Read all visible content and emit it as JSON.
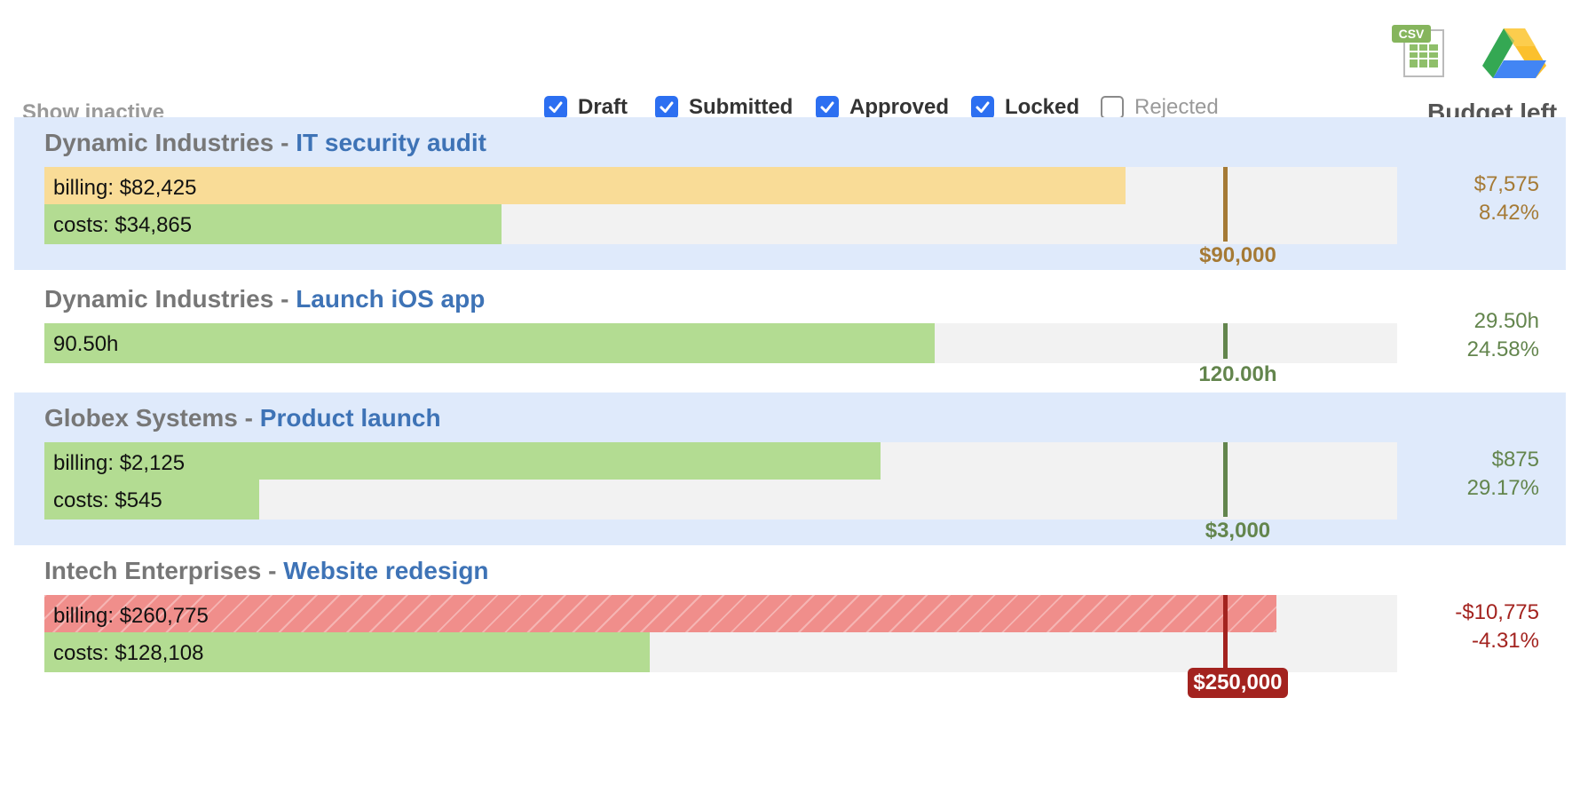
{
  "export": {
    "csv_badge": "CSV"
  },
  "filters": {
    "show_inactive": "Show inactive",
    "statuses": [
      {
        "label": "Draft",
        "checked": true
      },
      {
        "label": "Submitted",
        "checked": true
      },
      {
        "label": "Approved",
        "checked": true
      },
      {
        "label": "Locked",
        "checked": true
      },
      {
        "label": "Rejected",
        "checked": false
      }
    ],
    "budget_left_header": "Budget left"
  },
  "colors": {
    "accent_blue": "#2c6ff1",
    "project_link": "#3e73b6",
    "ok_brown": "#a57a35",
    "ok_green": "#63854d",
    "over_red": "#a3231f",
    "bar_yellow": "#f9dc97",
    "bar_green": "#b3dc92",
    "bar_red": "#f08e8b"
  },
  "projects": [
    {
      "client": "Dynamic Industries",
      "separator": " - ",
      "name": "IT security audit",
      "bars": [
        {
          "label": "billing: $82,425",
          "value": 82425,
          "color": "yellow"
        },
        {
          "label": "costs: $34,865",
          "value": 34865,
          "color": "green"
        }
      ],
      "budget": 90000,
      "budget_label": "$90,000",
      "left_amount": "$7,575",
      "left_pct": "8.42%"
    },
    {
      "client": "Dynamic Industries",
      "separator": " - ",
      "name": "Launch iOS app",
      "bars": [
        {
          "label": "90.50h",
          "value": 90.5,
          "color": "green"
        }
      ],
      "budget": 120,
      "budget_label": "120.00h",
      "left_amount": "29.50h",
      "left_pct": "24.58%"
    },
    {
      "client": "Globex Systems",
      "separator": " - ",
      "name": "Product launch",
      "bars": [
        {
          "label": "billing: $2,125",
          "value": 2125,
          "color": "green"
        },
        {
          "label": "costs: $545",
          "value": 545,
          "color": "green"
        }
      ],
      "budget": 3000,
      "budget_label": "$3,000",
      "left_amount": "$875",
      "left_pct": "29.17%"
    },
    {
      "client": "Intech Enterprises",
      "separator": " - ",
      "name": "Website redesign",
      "bars": [
        {
          "label": "billing: $260,775",
          "value": 260775,
          "color": "red"
        },
        {
          "label": "costs: $128,108",
          "value": 128108,
          "color": "green"
        }
      ],
      "budget": 250000,
      "budget_label": "$250,000",
      "left_amount": "-$10,775",
      "left_pct": "-4.31%"
    }
  ]
}
